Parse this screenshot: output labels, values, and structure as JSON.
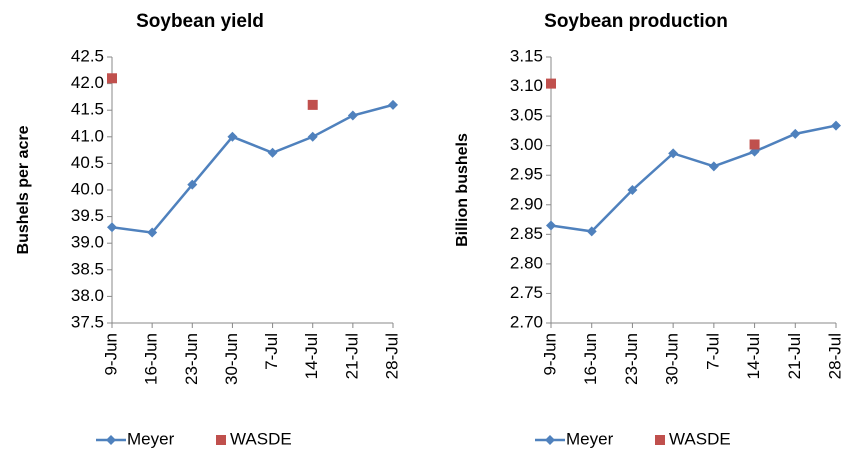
{
  "chart_data": [
    {
      "type": "line",
      "title": "Soybean yield",
      "ylabel": "Bushels per acre",
      "categories": [
        "9-Jun",
        "16-Jun",
        "23-Jun",
        "30-Jun",
        "7-Jul",
        "14-Jul",
        "21-Jul",
        "28-Jul"
      ],
      "series": [
        {
          "name": "Meyer",
          "color": "#4f81bd",
          "values": [
            39.3,
            39.2,
            40.1,
            41.0,
            40.7,
            41.0,
            41.4,
            41.6
          ]
        },
        {
          "name": "WASDE",
          "color": "#c0504d",
          "marker_only": true,
          "values": [
            42.1,
            null,
            null,
            null,
            null,
            41.6,
            null,
            null
          ]
        }
      ],
      "ylim": [
        37.5,
        42.5
      ],
      "yticks": [
        37.5,
        {
          "value": 38,
          "label": "38.0"
        },
        38.5,
        {
          "value": 39,
          "label": "39.0"
        },
        39.5,
        {
          "value": 40,
          "label": "40.0"
        },
        40.5,
        {
          "value": 41,
          "label": "41.0"
        },
        41.5,
        {
          "value": 42,
          "label": "42.0"
        },
        42.5
      ],
      "grid": false,
      "legend": "bottom"
    },
    {
      "type": "line",
      "title": "Soybean production",
      "ylabel": "Billion bushels",
      "categories": [
        "9-Jun",
        "16-Jun",
        "23-Jun",
        "30-Jun",
        "7-Jul",
        "14-Jul",
        "21-Jul",
        "28-Jul"
      ],
      "series": [
        {
          "name": "Meyer",
          "color": "#4f81bd",
          "values": [
            2.865,
            2.855,
            2.925,
            2.987,
            2.965,
            2.99,
            3.02,
            3.034
          ]
        },
        {
          "name": "WASDE",
          "color": "#c0504d",
          "marker_only": true,
          "values": [
            3.105,
            null,
            null,
            null,
            null,
            3.002,
            null,
            null
          ]
        }
      ],
      "ylim": [
        2.7,
        3.15
      ],
      "yticks": [
        {
          "value": 2.7,
          "label": "2.70"
        },
        2.75,
        {
          "value": 2.8,
          "label": "2.80"
        },
        2.85,
        {
          "value": 2.9,
          "label": "2.90"
        },
        2.95,
        {
          "value": 3,
          "label": "3.00"
        },
        3.05,
        {
          "value": 3.1,
          "label": "3.10"
        },
        3.15
      ],
      "grid": false,
      "legend": "bottom"
    }
  ]
}
